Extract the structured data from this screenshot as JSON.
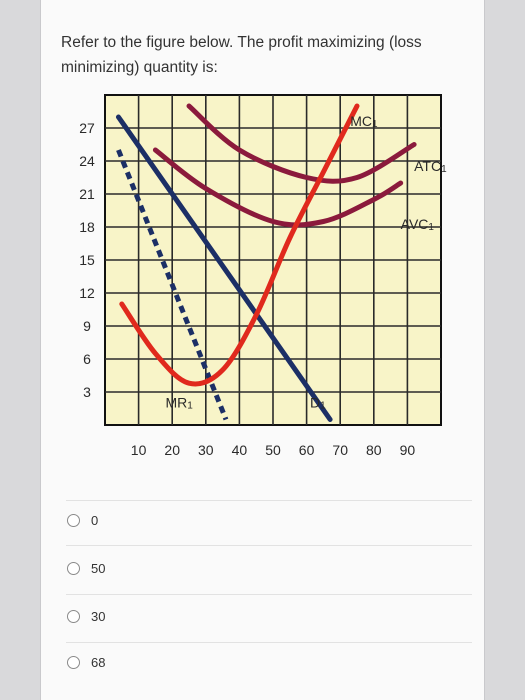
{
  "question": {
    "text": "Refer to the figure below. The profit maximizing (loss minimizing) quantity is:"
  },
  "chart_data": {
    "type": "line",
    "title": "",
    "xlabel": "",
    "ylabel": "",
    "x_ticks": [
      10,
      20,
      30,
      40,
      50,
      60,
      70,
      80,
      90
    ],
    "y_ticks": [
      3,
      6,
      9,
      12,
      15,
      18,
      21,
      24,
      27
    ],
    "xlim": [
      0,
      100
    ],
    "ylim": [
      0,
      30
    ],
    "grid": true,
    "colors": {
      "background": "#f8f4c8",
      "grid": "#2a2a2a",
      "mc": "#e0291d",
      "atc": "#8b1a3c",
      "avc": "#8b1a3c",
      "demand": "#1c2f66",
      "mr": "#1c2f66"
    },
    "series": [
      {
        "name": "MC1",
        "style": "solid",
        "points": [
          [
            5,
            11
          ],
          [
            15,
            6.5
          ],
          [
            25,
            3.8
          ],
          [
            35,
            5
          ],
          [
            45,
            10
          ],
          [
            55,
            17
          ],
          [
            65,
            23
          ],
          [
            75,
            29
          ]
        ]
      },
      {
        "name": "ATC1",
        "style": "solid",
        "points": [
          [
            25,
            29
          ],
          [
            40,
            25
          ],
          [
            60,
            22.5
          ],
          [
            75,
            22.5
          ],
          [
            92,
            25.5
          ]
        ]
      },
      {
        "name": "AVC1",
        "style": "solid",
        "points": [
          [
            15,
            25
          ],
          [
            30,
            21.5
          ],
          [
            50,
            18.5
          ],
          [
            65,
            18.5
          ],
          [
            80,
            20.5
          ],
          [
            88,
            22
          ]
        ]
      },
      {
        "name": "D1",
        "style": "solid",
        "points": [
          [
            4,
            28
          ],
          [
            67,
            0.5
          ]
        ]
      },
      {
        "name": "MR1",
        "style": "dashed",
        "points": [
          [
            4,
            25
          ],
          [
            36,
            0.5
          ]
        ]
      }
    ]
  },
  "options": [
    {
      "label": "0"
    },
    {
      "label": "50"
    },
    {
      "label": "30"
    },
    {
      "label": "68"
    }
  ]
}
